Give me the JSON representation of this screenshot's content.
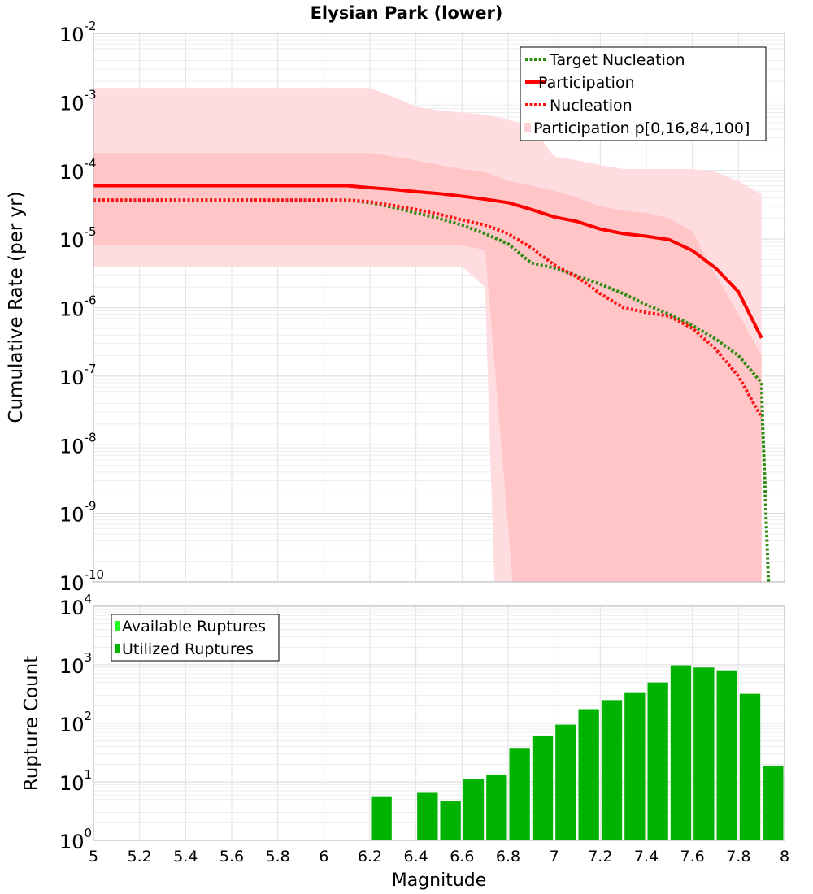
{
  "chart_data": [
    {
      "type": "line",
      "title": "Elysian Park (lower)",
      "xlabel": "",
      "ylabel": "Cumulative Rate (per yr)",
      "xlim": [
        5,
        8
      ],
      "ylim": [
        1e-10,
        0.01
      ],
      "yscale": "log",
      "grid": true,
      "legend_position": "top-right",
      "y_tick_labels": [
        {
          "base": "10",
          "exp": "-10",
          "value": 1e-10
        },
        {
          "base": "10",
          "exp": "-9",
          "value": 1e-09
        },
        {
          "base": "10",
          "exp": "-8",
          "value": 1e-08
        },
        {
          "base": "10",
          "exp": "-7",
          "value": 1e-07
        },
        {
          "base": "10",
          "exp": "-6",
          "value": 1e-06
        },
        {
          "base": "10",
          "exp": "-5",
          "value": 1e-05
        },
        {
          "base": "10",
          "exp": "-4",
          "value": 0.0001
        },
        {
          "base": "10",
          "exp": "-3",
          "value": 0.001
        },
        {
          "base": "10",
          "exp": "-2",
          "value": 0.01
        }
      ],
      "bands": [
        {
          "name": "Participation p[0,16,84,100]",
          "color": "#ffdcdf",
          "x": [
            5.0,
            6.2,
            6.3,
            6.4,
            6.5,
            6.6,
            6.7,
            6.8,
            6.9,
            7.0,
            7.1,
            7.2,
            7.3,
            7.4,
            7.5,
            7.6,
            7.7,
            7.8,
            7.9
          ],
          "upper": [
            0.0016,
            0.0016,
            0.0012,
            0.00085,
            0.00075,
            0.0007,
            0.00065,
            0.00055,
            0.00045,
            0.00016,
            0.00014,
            0.00012,
            0.000105,
            0.000105,
            0.000105,
            0.000105,
            9.5e-05,
            7e-05,
            4.5e-05
          ],
          "lower": [
            4e-06,
            4e-06,
            4e-06,
            4e-06,
            4e-06,
            4e-06,
            2e-06,
            1e-10,
            1e-10,
            1e-10,
            1e-10,
            1e-10,
            1e-10,
            1e-10,
            1e-10,
            1e-10,
            1e-10,
            1e-10,
            1e-10
          ],
          "lower_cut_x": 6.74
        },
        {
          "name": "16-84",
          "color": "#ffc5c7",
          "x": [
            5.0,
            6.2,
            6.3,
            6.4,
            6.5,
            6.6,
            6.7,
            6.8,
            6.9,
            7.0,
            7.1,
            7.2,
            7.3,
            7.4,
            7.5,
            7.6,
            7.7,
            7.8,
            7.9
          ],
          "upper": [
            0.00018,
            0.00018,
            0.00016,
            0.00014,
            0.00012,
            0.000105,
            9.5e-05,
            7e-05,
            6e-05,
            5e-05,
            4e-05,
            3e-05,
            2.6e-05,
            2.4e-05,
            2e-05,
            1.3e-05,
            3e-06,
            8e-07,
            2e-07
          ],
          "lower": [
            8e-06,
            8e-06,
            8e-06,
            8e-06,
            8e-06,
            8e-06,
            7e-06,
            1e-10,
            1e-10,
            1e-10,
            1e-10,
            1e-10,
            1e-10,
            1e-10,
            1e-10,
            1e-10,
            1e-10,
            1e-10,
            1e-10
          ],
          "lower_cut_x": 6.82
        }
      ],
      "series": [
        {
          "name": "Target Nucleation",
          "style": "dotted",
          "color": "#2e8b12",
          "x": [
            5.0,
            6.1,
            6.2,
            6.3,
            6.4,
            6.5,
            6.6,
            6.7,
            6.8,
            6.9,
            7.0,
            7.1,
            7.2,
            7.3,
            7.4,
            7.5,
            7.6,
            7.7,
            7.8,
            7.9,
            7.905,
            7.93
          ],
          "y": [
            3.7e-05,
            3.7e-05,
            3.4e-05,
            2.9e-05,
            2.4e-05,
            2e-05,
            1.6e-05,
            1.2e-05,
            8.5e-06,
            4.5e-06,
            3.8e-06,
            2.9e-06,
            2.2e-06,
            1.6e-06,
            1.1e-06,
            8e-07,
            5.5e-07,
            3.5e-07,
            2e-07,
            8e-08,
            2e-08,
            1e-10
          ]
        },
        {
          "name": "Participation",
          "style": "solid",
          "color": "#ff0000",
          "x": [
            5.0,
            6.1,
            6.2,
            6.3,
            6.4,
            6.5,
            6.6,
            6.7,
            6.8,
            6.9,
            7.0,
            7.1,
            7.2,
            7.3,
            7.4,
            7.5,
            7.6,
            7.7,
            7.8,
            7.9
          ],
          "y": [
            6e-05,
            6e-05,
            5.6e-05,
            5.3e-05,
            4.9e-05,
            4.6e-05,
            4.2e-05,
            3.8e-05,
            3.4e-05,
            2.7e-05,
            2.1e-05,
            1.8e-05,
            1.4e-05,
            1.2e-05,
            1.1e-05,
            9.8e-06,
            6.8e-06,
            3.8e-06,
            1.7e-06,
            3.6e-07
          ]
        },
        {
          "name": "Nucleation",
          "style": "dotted",
          "color": "#ff1010",
          "x": [
            5.0,
            6.1,
            6.2,
            6.3,
            6.4,
            6.5,
            6.6,
            6.7,
            6.8,
            6.9,
            7.0,
            7.1,
            7.2,
            7.3,
            7.4,
            7.5,
            7.6,
            7.7,
            7.8,
            7.9
          ],
          "y": [
            3.7e-05,
            3.7e-05,
            3.5e-05,
            3.1e-05,
            2.7e-05,
            2.3e-05,
            1.9e-05,
            1.6e-05,
            1.2e-05,
            7.5e-06,
            4.2e-06,
            2.8e-06,
            1.6e-06,
            1e-06,
            8.5e-07,
            7.5e-07,
            5e-07,
            2.5e-07,
            1e-07,
            2.5e-08
          ]
        }
      ],
      "legend": [
        {
          "label": "Target Nucleation",
          "kind": "dotted",
          "color": "#2e8b12"
        },
        {
          "label": "Participation",
          "kind": "solid",
          "color": "#ff0000"
        },
        {
          "label": "Nucleation",
          "kind": "dotted",
          "color": "#ff1010"
        },
        {
          "label": "Participation p[0,16,84,100]",
          "kind": "box",
          "color": "#ffd0d3"
        }
      ]
    },
    {
      "type": "bar",
      "title": "",
      "xlabel": "Magnitude",
      "ylabel": "Rupture Count",
      "xlim": [
        5,
        8
      ],
      "ylim": [
        1,
        10000
      ],
      "yscale": "log",
      "grid": true,
      "legend_position": "top-left",
      "x_ticks": [
        "5",
        "5.2",
        "5.4",
        "5.6",
        "5.8",
        "6",
        "6.2",
        "6.4",
        "6.6",
        "6.8",
        "7",
        "7.2",
        "7.4",
        "7.6",
        "7.8",
        "8"
      ],
      "x_tick_values": [
        5,
        5.2,
        5.4,
        5.6,
        5.8,
        6,
        6.2,
        6.4,
        6.6,
        6.8,
        7,
        7.2,
        7.4,
        7.6,
        7.8,
        8
      ],
      "y_tick_labels": [
        {
          "base": "10",
          "exp": "0",
          "value": 1
        },
        {
          "base": "10",
          "exp": "1",
          "value": 10
        },
        {
          "base": "10",
          "exp": "2",
          "value": 100
        },
        {
          "base": "10",
          "exp": "3",
          "value": 1000
        },
        {
          "base": "10",
          "exp": "4",
          "value": 10000
        }
      ],
      "bin_width": 0.1,
      "bars": [
        {
          "x": 6.25,
          "value": 5.5
        },
        {
          "x": 6.45,
          "value": 6.5
        },
        {
          "x": 6.55,
          "value": 4.7
        },
        {
          "x": 6.65,
          "value": 11
        },
        {
          "x": 6.75,
          "value": 13
        },
        {
          "x": 6.85,
          "value": 38
        },
        {
          "x": 6.95,
          "value": 62
        },
        {
          "x": 7.05,
          "value": 95
        },
        {
          "x": 7.15,
          "value": 175
        },
        {
          "x": 7.25,
          "value": 250
        },
        {
          "x": 7.35,
          "value": 330
        },
        {
          "x": 7.45,
          "value": 500
        },
        {
          "x": 7.55,
          "value": 980
        },
        {
          "x": 7.65,
          "value": 900
        },
        {
          "x": 7.75,
          "value": 780
        },
        {
          "x": 7.85,
          "value": 320
        },
        {
          "x": 7.95,
          "value": 19
        }
      ],
      "series": [
        {
          "name": "Available Ruptures",
          "color": "#22ff22"
        },
        {
          "name": "Utilized Ruptures",
          "color": "#00b300"
        }
      ]
    }
  ]
}
